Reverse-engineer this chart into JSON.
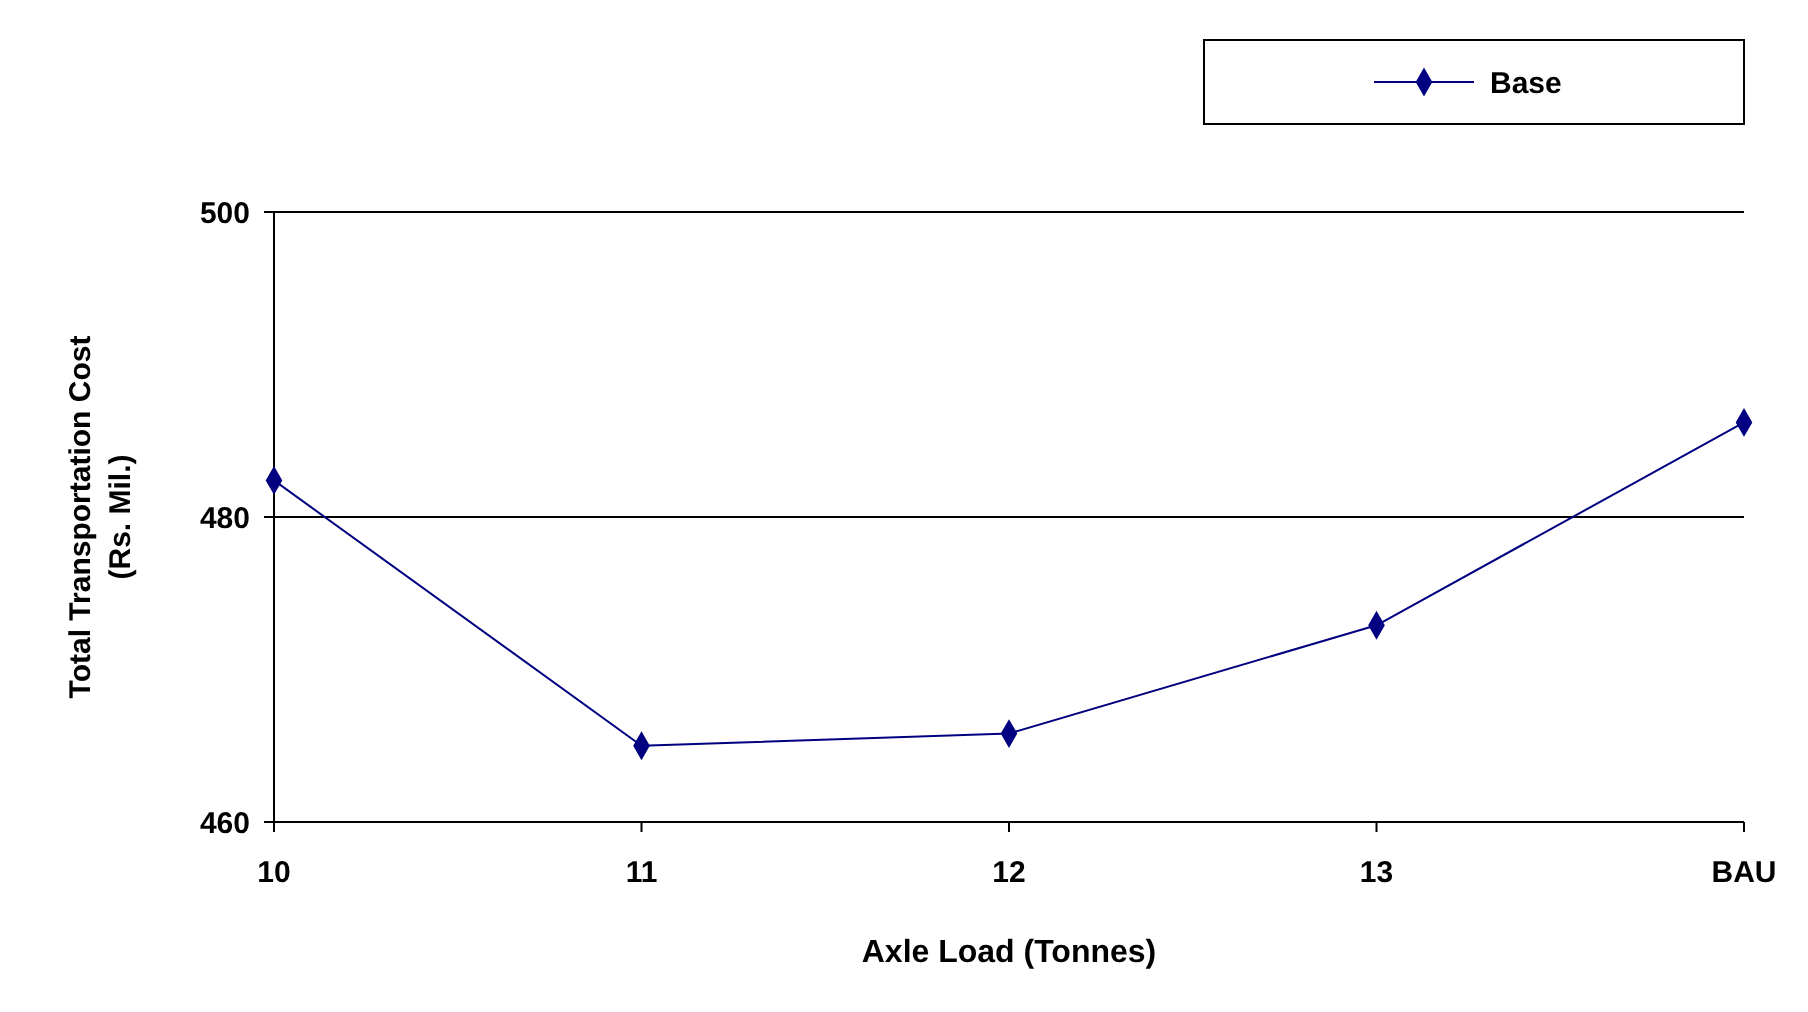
{
  "chart_data": {
    "type": "line",
    "xlabel": "Axle Load (Tonnes)",
    "ylabel": "Total Transportation Cost (Rs. Mil.)",
    "categories": [
      "10",
      "11",
      "12",
      "13",
      "BAU"
    ],
    "series": [
      {
        "name": "Base",
        "color": "#000080",
        "values": [
          482.4,
          465.0,
          465.8,
          472.9,
          486.2
        ]
      }
    ],
    "ylim": [
      460,
      500
    ],
    "yticks": [
      460,
      480,
      500
    ],
    "grid": "y",
    "legend": "top right",
    "marker": "diamond",
    "line_style": "solid"
  }
}
